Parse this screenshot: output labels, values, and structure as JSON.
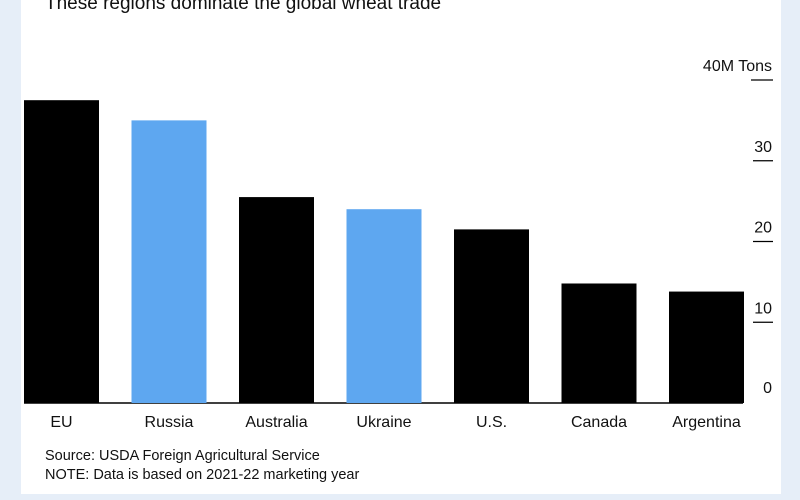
{
  "chart_data": {
    "type": "bar",
    "title": "These regions dominate the global wheat trade",
    "categories": [
      "EU",
      "Russia",
      "Australia",
      "Ukraine",
      "U.S.",
      "Canada",
      "Argentina"
    ],
    "values": [
      37.5,
      35,
      25.5,
      24,
      21.5,
      14.8,
      13.8
    ],
    "bar_colors": [
      "#000000",
      "#5ea7f0",
      "#000000",
      "#5ea7f0",
      "#000000",
      "#000000",
      "#000000"
    ],
    "ylabel": "",
    "unit_label": "40M Tons",
    "yticks": [
      {
        "value": 0,
        "label": "0"
      },
      {
        "value": 10,
        "label": "10"
      },
      {
        "value": 20,
        "label": "20"
      },
      {
        "value": 30,
        "label": "30"
      },
      {
        "value": 40,
        "label": "40M Tons"
      }
    ],
    "ylim": [
      0,
      40
    ],
    "y_axis_side": "right",
    "grid": false
  },
  "footer": {
    "source": "Source: USDA Foreign Agricultural Service",
    "note": "NOTE: Data is based on 2021-22 marketing year"
  }
}
